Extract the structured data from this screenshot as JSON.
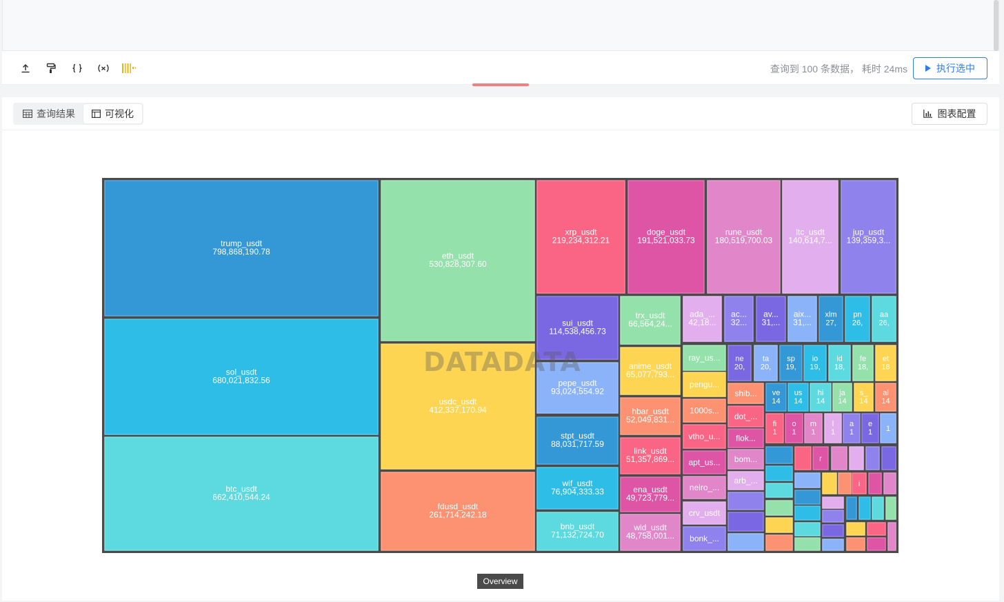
{
  "toolbar": {
    "query_info": "查询到 100 条数据，  耗时 24ms",
    "run_label": "执行选中",
    "icons": [
      "upload-icon",
      "format-brush-icon",
      "braces-icon",
      "variable-icon",
      "barcode-icon"
    ]
  },
  "panel": {
    "tab_results": "查询结果",
    "tab_visual": "可视化",
    "config_label": "图表配置"
  },
  "watermark": "DATADATA",
  "breadcrumb": "Overview",
  "colors": {
    "accent": "#2b7de9",
    "handle": "#f07f82",
    "border": "#4a4a4a"
  },
  "chart_data": {
    "type": "treemap",
    "title": "Overview",
    "items": [
      {
        "name": "trump_usdt",
        "value": 798868190.78,
        "label": "798,868,190.78",
        "color": "#3497d6"
      },
      {
        "name": "sol_usdt",
        "value": 680021832.56,
        "label": "680,021,832.56",
        "color": "#2ebde6"
      },
      {
        "name": "btc_usdt",
        "value": 662410544.24,
        "label": "662,410,544.24",
        "color": "#5cdadf"
      },
      {
        "name": "eth_usdt",
        "value": 530828307.6,
        "label": "530,828,307.60",
        "color": "#95e1ab"
      },
      {
        "name": "usdc_usdt",
        "value": 412337170.94,
        "label": "412,337,170.94",
        "color": "#fdd552"
      },
      {
        "name": "fdusd_usdt",
        "value": 261714242.18,
        "label": "261,714,242.18",
        "color": "#fd9273"
      },
      {
        "name": "xrp_usdt",
        "value": 219234312.21,
        "label": "219,234,312.21",
        "color": "#fb6585"
      },
      {
        "name": "doge_usdt",
        "value": 191521033.73,
        "label": "191,521,033.73",
        "color": "#de55a6"
      },
      {
        "name": "rune_usdt",
        "value": 180519700.03,
        "label": "180,519,700.03",
        "color": "#e086c9"
      },
      {
        "name": "ltc_usdt",
        "value": 140614700,
        "label": "140,614,7...",
        "color": "#e3aeee"
      },
      {
        "name": "jup_usdt",
        "value": 139359300,
        "label": "139,359,3...",
        "color": "#8f82ec"
      },
      {
        "name": "sui_usdt",
        "value": 114538456.73,
        "label": "114,538,456.73",
        "color": "#7a68e3"
      },
      {
        "name": "pepe_usdt",
        "value": 93024554.92,
        "label": "93,024,554.92",
        "color": "#8ab3f9"
      },
      {
        "name": "stpt_usdt",
        "value": 88031717.59,
        "label": "88,031,717.59",
        "color": "#3497d6"
      },
      {
        "name": "wif_usdt",
        "value": 76904333.33,
        "label": "76,904,333.33",
        "color": "#2ebde6"
      },
      {
        "name": "bnb_usdt",
        "value": 71132724.7,
        "label": "71,132,724.70",
        "color": "#5cdadf"
      },
      {
        "name": "trx_usdt",
        "value": 66564240,
        "label": "66,564,24...",
        "color": "#95e1ab"
      },
      {
        "name": "anime_usdt",
        "value": 65077793,
        "label": "65,077,793...",
        "color": "#fdd552"
      },
      {
        "name": "hbar_usdt",
        "value": 52049831,
        "label": "52,049,831...",
        "color": "#fd9273"
      },
      {
        "name": "link_usdt",
        "value": 51357869,
        "label": "51,357,869...",
        "color": "#fb6585"
      },
      {
        "name": "ena_usdt",
        "value": 49723779,
        "label": "49,723,779...",
        "color": "#de55a6"
      },
      {
        "name": "wld_usdt",
        "value": 48758001,
        "label": "48,758,001...",
        "color": "#e086c9"
      },
      {
        "name": "ada_...",
        "value": 42180000,
        "label": "42,18...",
        "color": "#e3aeee"
      },
      {
        "name": "ac...",
        "value": 32000000,
        "label": "32...",
        "color": "#8f82ec"
      },
      {
        "name": "av...",
        "value": 31000000,
        "label": "31,...",
        "color": "#7a68e3"
      },
      {
        "name": "aix...",
        "value": 31000000,
        "label": "31,...",
        "color": "#8ab3f9"
      },
      {
        "name": "xlm",
        "value": 27000000,
        "label": "27,",
        "color": "#3497d6"
      },
      {
        "name": "pn",
        "value": 26000000,
        "label": "26,",
        "color": "#2ebde6"
      },
      {
        "name": "aa",
        "value": 26000000,
        "label": "26,",
        "color": "#5cdadf"
      },
      {
        "name": "ray_us...",
        "value": 24000000,
        "label": "",
        "color": "#95e1ab"
      },
      {
        "name": "pengu...",
        "value": 23000000,
        "label": "",
        "color": "#fdd552"
      },
      {
        "name": "1000s...",
        "value": 22000000,
        "label": "",
        "color": "#fd9273"
      },
      {
        "name": "vtho_u...",
        "value": 21500000,
        "label": "",
        "color": "#fb6585"
      },
      {
        "name": "apt_us...",
        "value": 21000000,
        "label": "",
        "color": "#de55a6"
      },
      {
        "name": "neiro_...",
        "value": 20500000,
        "label": "",
        "color": "#e086c9"
      },
      {
        "name": "crv_usdt",
        "value": 20200000,
        "label": "",
        "color": "#e3aeee"
      },
      {
        "name": "bonk_...",
        "value": 20100000,
        "label": "",
        "color": "#8f82ec"
      },
      {
        "name": "ne",
        "value": 20000000,
        "label": "20,",
        "color": "#7a68e3"
      },
      {
        "name": "ta",
        "value": 20000000,
        "label": "20,",
        "color": "#8ab3f9"
      },
      {
        "name": "sp",
        "value": 19000000,
        "label": "19,",
        "color": "#3497d6"
      },
      {
        "name": "io",
        "value": 19000000,
        "label": "19,",
        "color": "#2ebde6"
      },
      {
        "name": "id",
        "value": 18000000,
        "label": "18,",
        "color": "#5cdadf"
      },
      {
        "name": "fe",
        "value": 18000000,
        "label": "18,",
        "color": "#95e1ab"
      },
      {
        "name": "et",
        "value": 18000000,
        "label": "18",
        "color": "#fdd552"
      },
      {
        "name": "shib...",
        "value": 17000000,
        "label": "",
        "color": "#fd9273"
      },
      {
        "name": "dot_...",
        "value": 16500000,
        "label": "",
        "color": "#fb6585"
      },
      {
        "name": "flok...",
        "value": 16000000,
        "label": "",
        "color": "#de55a6"
      },
      {
        "name": "bom...",
        "value": 15500000,
        "label": "",
        "color": "#e086c9"
      },
      {
        "name": "arb_...",
        "value": 15000000,
        "label": "",
        "color": "#e3aeee"
      },
      {
        "name": "ve",
        "value": 14000000,
        "label": "14",
        "color": "#3497d6"
      },
      {
        "name": "us",
        "value": 14000000,
        "label": "14",
        "color": "#2ebde6"
      },
      {
        "name": "hi",
        "value": 14000000,
        "label": "14",
        "color": "#5cdadf"
      },
      {
        "name": "ja",
        "value": 14000000,
        "label": "14",
        "color": "#95e1ab"
      },
      {
        "name": "s_",
        "value": 14000000,
        "label": "14",
        "color": "#fdd552"
      },
      {
        "name": "al",
        "value": 14000000,
        "label": "14",
        "color": "#fd9273"
      },
      {
        "name": "fi",
        "value": 13000000,
        "label": "1",
        "color": "#fb6585"
      },
      {
        "name": "o",
        "value": 13000000,
        "label": "1",
        "color": "#de55a6"
      },
      {
        "name": "m",
        "value": 13000000,
        "label": "1",
        "color": "#e086c9"
      },
      {
        "name": "l",
        "value": 13000000,
        "label": "1",
        "color": "#e3aeee"
      },
      {
        "name": "a",
        "value": 13000000,
        "label": "1",
        "color": "#8f82ec"
      },
      {
        "name": "e",
        "value": 13000000,
        "label": "1",
        "color": "#7a68e3"
      },
      {
        "name": "",
        "value": 12000000,
        "label": "1",
        "color": "#8ab3f9"
      },
      {
        "name": "r",
        "value": 11000000,
        "label": "",
        "color": "#de55a6"
      },
      {
        "name": "i",
        "value": 10000000,
        "label": "",
        "color": "#fb6585"
      }
    ]
  }
}
